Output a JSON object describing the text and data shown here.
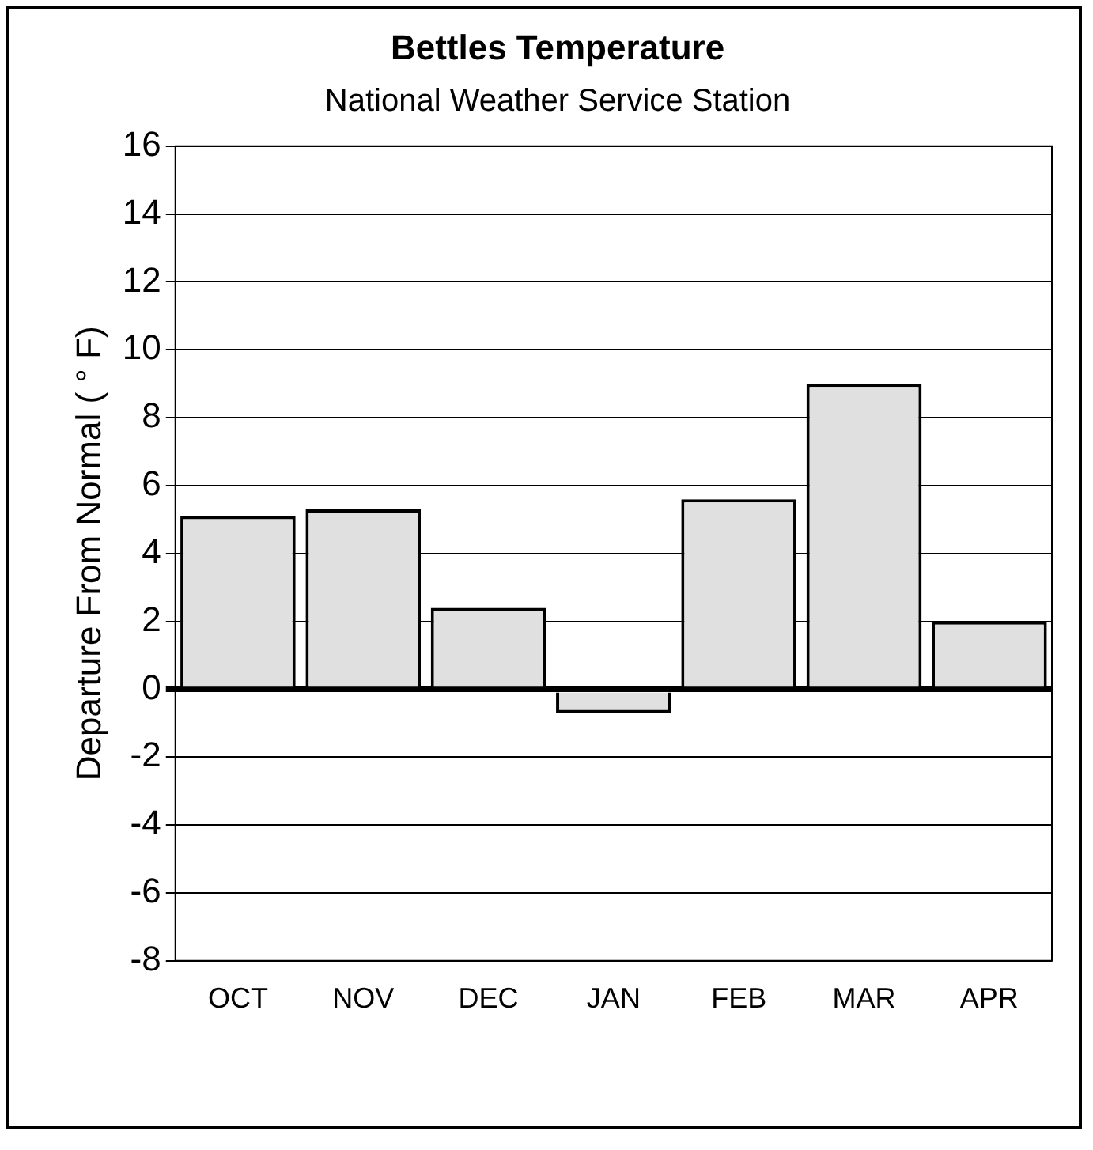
{
  "chart_data": {
    "type": "bar",
    "title": "Bettles Temperature",
    "subtitle": "National Weather Service Station",
    "ylabel": "Departure From Normal ( ° F)",
    "categories": [
      "OCT",
      "NOV",
      "DEC",
      "JAN",
      "FEB",
      "MAR",
      "APR"
    ],
    "values": [
      5.1,
      5.3,
      2.4,
      -0.7,
      5.6,
      9.0,
      2.0
    ],
    "color": "#e0e0e0",
    "ylim": [
      -8,
      16
    ],
    "yticks": [
      -8,
      -6,
      -4,
      -2,
      0,
      2,
      4,
      6,
      8,
      10,
      12,
      14,
      16
    ],
    "grid": "y",
    "legend": false
  }
}
